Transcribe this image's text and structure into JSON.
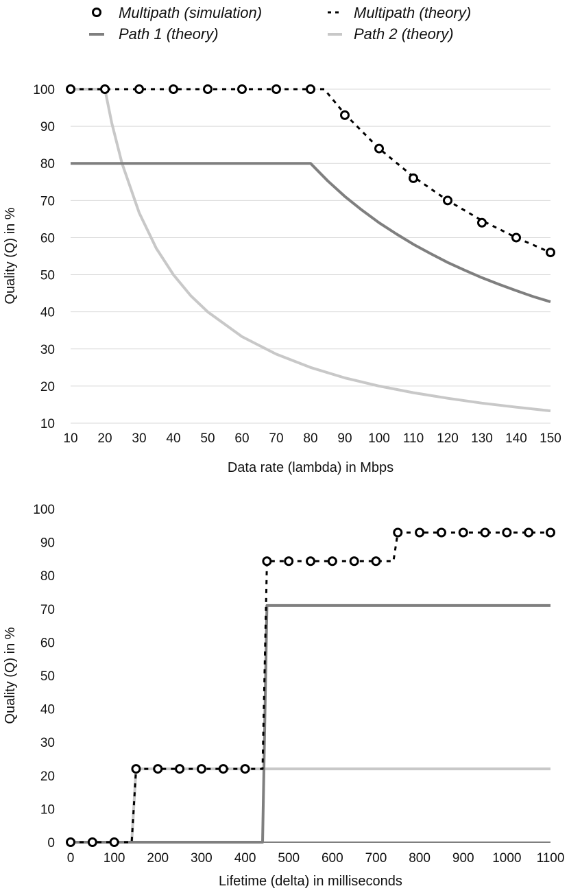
{
  "legend": {
    "items": [
      {
        "label": "Multipath (simulation)",
        "style": "markers"
      },
      {
        "label": "Multipath (theory)",
        "style": "dashed"
      },
      {
        "label": "Path 1 (theory)",
        "style": "dark"
      },
      {
        "label": "Path 2 (theory)",
        "style": "light"
      }
    ]
  },
  "colors": {
    "multipath": "#000000",
    "path1": "#7f7f7f",
    "path2": "#c8c8c8",
    "grid": "#d9d9d9"
  },
  "chart_data": [
    {
      "type": "line",
      "title": "",
      "xlabel": "Data rate (lambda) in Mbps",
      "ylabel": "Quality (Q) in %",
      "xlim": [
        10,
        150
      ],
      "ylim": [
        10,
        100
      ],
      "grid": true,
      "legend_placement": "top",
      "x_ticks": [
        10,
        20,
        30,
        40,
        50,
        60,
        70,
        80,
        90,
        100,
        110,
        120,
        130,
        140,
        150
      ],
      "y_ticks": [
        10,
        20,
        30,
        40,
        50,
        60,
        70,
        80,
        90,
        100
      ],
      "series": [
        {
          "name": "Multipath (simulation)",
          "style": "markers",
          "x": [
            10,
            20,
            30,
            40,
            50,
            60,
            70,
            80,
            90,
            100,
            110,
            120,
            130,
            140,
            150
          ],
          "y": [
            100,
            100,
            100,
            100,
            100,
            100,
            100,
            100,
            93,
            84,
            76,
            70,
            64,
            60,
            56
          ]
        },
        {
          "name": "Multipath (theory)",
          "style": "dashed",
          "x": [
            10,
            20,
            30,
            40,
            50,
            60,
            70,
            80,
            84,
            90,
            100,
            110,
            120,
            130,
            140,
            150
          ],
          "y": [
            100,
            100,
            100,
            100,
            100,
            100,
            100,
            100,
            100,
            93.3,
            84,
            76.4,
            70,
            64.6,
            60,
            56
          ]
        },
        {
          "name": "Path 1 (theory)",
          "style": "dark",
          "x": [
            10,
            80,
            85,
            90,
            95,
            100,
            105,
            110,
            115,
            120,
            125,
            130,
            135,
            140,
            145,
            150
          ],
          "y": [
            80,
            80,
            75.3,
            71.1,
            67.4,
            64,
            61,
            58.2,
            55.7,
            53.3,
            51.2,
            49.2,
            47.4,
            45.7,
            44.1,
            42.7
          ]
        },
        {
          "name": "Path 2 (theory)",
          "style": "light",
          "x": [
            10,
            18,
            20,
            22,
            25,
            30,
            35,
            40,
            45,
            50,
            60,
            70,
            80,
            90,
            100,
            110,
            120,
            130,
            140,
            150
          ],
          "y": [
            100,
            100,
            100,
            90.9,
            80,
            66.7,
            57.1,
            50,
            44.4,
            40,
            33.3,
            28.6,
            25,
            22.2,
            20,
            18.2,
            16.7,
            15.4,
            14.3,
            13.3
          ]
        }
      ]
    },
    {
      "type": "line",
      "title": "",
      "xlabel": "Lifetime (delta) in milliseconds",
      "ylabel": "Quality (Q) in %",
      "xlim": [
        0,
        1100
      ],
      "ylim": [
        0,
        100
      ],
      "grid": false,
      "x_ticks": [
        0,
        100,
        200,
        300,
        400,
        500,
        600,
        700,
        800,
        900,
        1000,
        1100
      ],
      "y_ticks": [
        0,
        10,
        20,
        30,
        40,
        50,
        60,
        70,
        80,
        90,
        100
      ],
      "series": [
        {
          "name": "Multipath (simulation)",
          "style": "markers",
          "x": [
            0,
            50,
            100,
            150,
            200,
            250,
            300,
            350,
            400,
            450,
            500,
            550,
            600,
            650,
            700,
            750,
            800,
            850,
            900,
            950,
            1000,
            1050,
            1100
          ],
          "y": [
            0,
            0,
            0,
            22,
            22,
            22,
            22,
            22,
            22,
            84.3,
            84.3,
            84.3,
            84.3,
            84.3,
            84.3,
            92.9,
            92.9,
            92.9,
            92.9,
            92.9,
            92.9,
            92.9,
            92.9
          ]
        },
        {
          "name": "Multipath (theory)",
          "style": "dashed",
          "x": [
            0,
            140,
            150,
            440,
            450,
            740,
            750,
            1100
          ],
          "y": [
            0,
            0,
            22,
            22,
            84.3,
            84.3,
            92.9,
            92.9
          ]
        },
        {
          "name": "Path 1 (theory)",
          "style": "dark",
          "x": [
            0,
            440,
            450,
            1100
          ],
          "y": [
            0,
            0,
            71,
            71
          ]
        },
        {
          "name": "Path 2 (theory)",
          "style": "light",
          "x": [
            0,
            140,
            150,
            1100
          ],
          "y": [
            0,
            0,
            22,
            22
          ]
        }
      ]
    }
  ]
}
